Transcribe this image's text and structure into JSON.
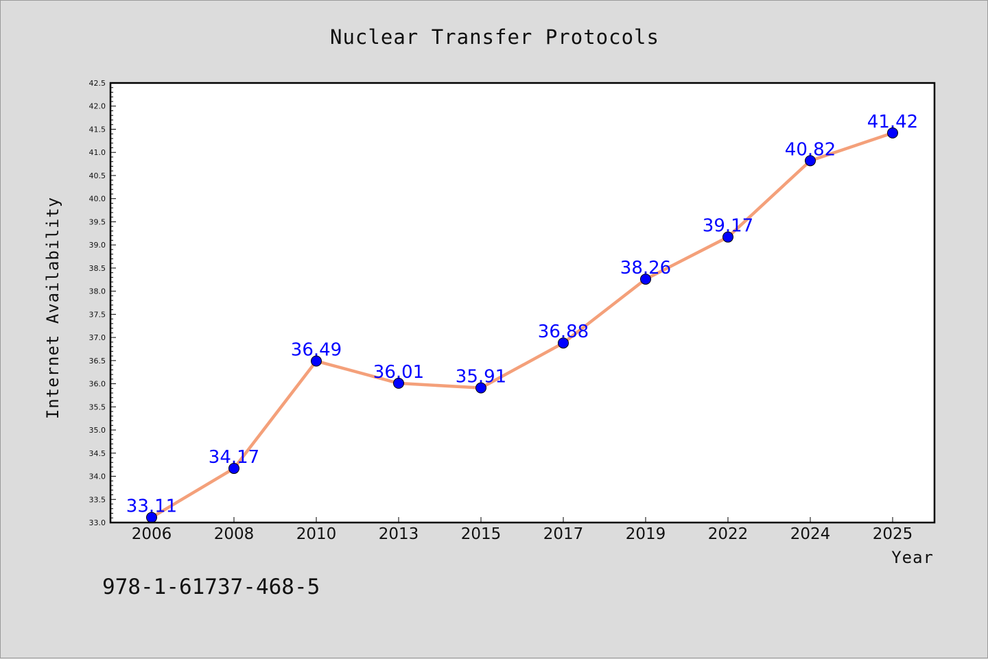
{
  "isbn": "978-1-61737-468-5",
  "chart_data": {
    "type": "line",
    "title": "Nuclear Transfer Protocols",
    "xlabel": "Year",
    "ylabel": "Internet Availability",
    "categories": [
      "2006",
      "2008",
      "2010",
      "2013",
      "2015",
      "2017",
      "2019",
      "2022",
      "2024",
      "2025"
    ],
    "series": [
      {
        "values": [
          33.11,
          34.17,
          36.49,
          36.01,
          35.91,
          36.88,
          38.26,
          39.17,
          40.82,
          41.42
        ],
        "labels": [
          "33.11",
          "34.17",
          "36.49",
          "36.01",
          "35.91",
          "36.88",
          "38.26",
          "39.17",
          "40.82",
          "41.42"
        ]
      }
    ],
    "ylim": [
      33.0,
      42.5
    ],
    "yticks": [
      "33.0",
      "33.5",
      "34.0",
      "34.5",
      "35.0",
      "35.5",
      "36.0",
      "36.5",
      "37.0",
      "37.5",
      "38.0",
      "38.5",
      "39.0",
      "39.5",
      "40.0",
      "40.5",
      "41.0",
      "41.5",
      "42.0",
      "42.5"
    ],
    "grid": false,
    "legend": "none",
    "colors": {
      "line": "#f4a07a",
      "marker": "#0000ff",
      "label": "#0000ff",
      "background": "#dcdcdc",
      "plot_background": "#ffffff"
    }
  }
}
